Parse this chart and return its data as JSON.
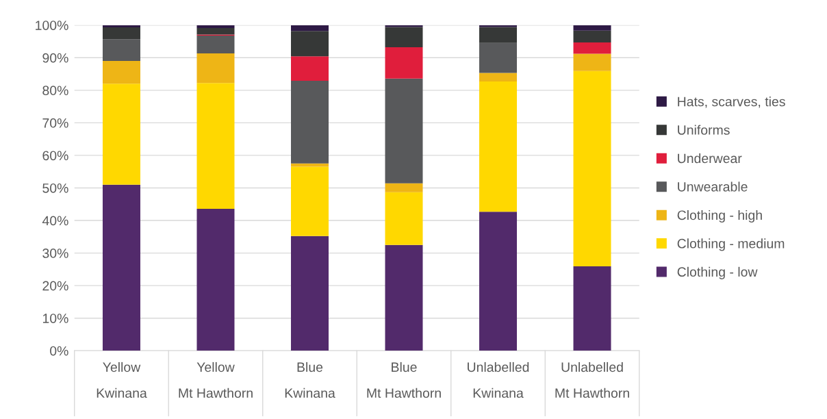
{
  "chart_data": {
    "type": "bar",
    "stacked": true,
    "categories": [
      "Yellow\nKwinana",
      "Yellow\nMt Hawthorn",
      "Blue\nKwinana",
      "Blue\nMt Hawthorn",
      "Unlabelled\nKwinana",
      "Unlabelled\nMt Hawthorn"
    ],
    "series": [
      {
        "name": "Clothing - low",
        "color": "#522a6b",
        "values": [
          51.0,
          43.6,
          35.2,
          32.5,
          42.7,
          25.9
        ]
      },
      {
        "name": "Clothing - medium",
        "color": "#ffd800",
        "values": [
          31.0,
          38.6,
          21.3,
          16.2,
          40.0,
          60.0
        ]
      },
      {
        "name": "Clothing - high",
        "color": "#eeb516",
        "values": [
          7.0,
          9.1,
          1.0,
          2.7,
          2.6,
          5.3
        ]
      },
      {
        "name": "Unwearable",
        "color": "#58595b",
        "values": [
          6.7,
          5.5,
          25.4,
          32.2,
          9.2,
          0
        ]
      },
      {
        "name": "Underwear",
        "color": "#e01e3c",
        "values": [
          0,
          0.3,
          7.5,
          9.6,
          0,
          3.5
        ]
      },
      {
        "name": "Uniforms",
        "color": "#363837",
        "values": [
          3.6,
          2.0,
          7.8,
          6.2,
          4.9,
          3.6
        ]
      },
      {
        "name": "Hats, scarves, ties",
        "color": "#2e1a45",
        "values": [
          0.7,
          0.9,
          1.8,
          0.6,
          0.6,
          1.7
        ]
      }
    ],
    "ylim": [
      0,
      100
    ],
    "yticks": [
      {
        "value": 0,
        "label": "0%"
      },
      {
        "value": 10,
        "label": "10%"
      },
      {
        "value": 20,
        "label": "20%"
      },
      {
        "value": 30,
        "label": "30%"
      },
      {
        "value": 40,
        "label": "40%"
      },
      {
        "value": 50,
        "label": "50%"
      },
      {
        "value": 60,
        "label": "60%"
      },
      {
        "value": 70,
        "label": "70%"
      },
      {
        "value": 80,
        "label": "80%"
      },
      {
        "value": 90,
        "label": "90%"
      },
      {
        "value": 100,
        "label": "100%"
      }
    ],
    "grid": "y",
    "legend": "right"
  }
}
